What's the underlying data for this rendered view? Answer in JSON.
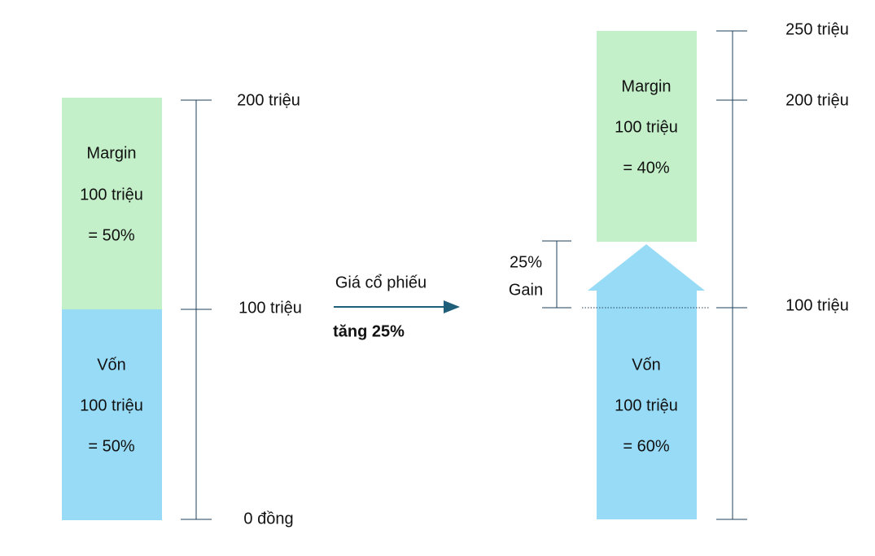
{
  "left": {
    "margin": {
      "title": "Margin",
      "amount": "100 triệu",
      "share": "= 50%"
    },
    "capital": {
      "title": "Vốn",
      "amount": "100 triệu",
      "share": "= 50%"
    },
    "scale": [
      "200 triệu",
      "100 triệu",
      "0 đồng"
    ]
  },
  "middle": {
    "line1": "Giá cổ phiếu",
    "line2": "tăng 25%"
  },
  "right": {
    "margin": {
      "title": "Margin",
      "amount": "100 triệu",
      "share": "= 40%"
    },
    "capital": {
      "title": "Vốn",
      "amount": "100 triệu",
      "share": "= 60%"
    },
    "gain": [
      "25%",
      "Gain"
    ],
    "scale": [
      "250 triệu",
      "200 triệu",
      "100 triệu"
    ]
  }
}
